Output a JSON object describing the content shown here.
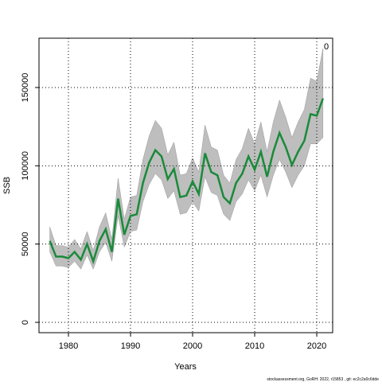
{
  "chart_data": {
    "type": "line",
    "xlabel": "Years",
    "ylabel": "SSB",
    "annotation": "0",
    "footer": "stockassessment.org, GoRH: 2022, r15853 , git: ec2c2a0c6dde",
    "x": [
      1977,
      1978,
      1979,
      1980,
      1981,
      1982,
      1983,
      1984,
      1985,
      1986,
      1987,
      1988,
      1989,
      1990,
      1991,
      1992,
      1993,
      1994,
      1995,
      1996,
      1997,
      1998,
      1999,
      2000,
      2001,
      2002,
      2003,
      2004,
      2005,
      2006,
      2007,
      2008,
      2009,
      2010,
      2011,
      2012,
      2013,
      2014,
      2015,
      2016,
      2017,
      2018,
      2019,
      2020,
      2021
    ],
    "values": [
      52000,
      42000,
      42000,
      41000,
      45000,
      40000,
      50000,
      39000,
      52000,
      59500,
      45000,
      79000,
      56000,
      68000,
      69000,
      89000,
      102000,
      110000,
      106000,
      91500,
      98000,
      80000,
      81000,
      90000,
      82000,
      108000,
      96000,
      94000,
      80000,
      76000,
      89000,
      95000,
      106000,
      97500,
      109000,
      93000,
      109000,
      121000,
      112000,
      100500,
      109000,
      116000,
      133000,
      132000,
      143000
    ],
    "upper": [
      61000,
      49000,
      49000,
      48000,
      53000,
      47000,
      58000,
      46000,
      61000,
      70000,
      53000,
      92000,
      66000,
      80000,
      81000,
      104000,
      119000,
      129000,
      124000,
      107000,
      115000,
      94000,
      95000,
      105000,
      96000,
      126000,
      112000,
      110000,
      94000,
      89000,
      104000,
      111000,
      124000,
      114000,
      128000,
      109000,
      128000,
      142000,
      131000,
      118000,
      128000,
      136000,
      156000,
      154000,
      175000
    ],
    "lower": [
      45000,
      36000,
      36000,
      35000,
      39000,
      34000,
      43000,
      34000,
      45000,
      51000,
      39000,
      68000,
      48000,
      58000,
      59000,
      77000,
      88000,
      95000,
      91000,
      79000,
      84000,
      69000,
      70000,
      77000,
      71000,
      93000,
      83000,
      81000,
      69000,
      65000,
      77000,
      82000,
      91000,
      84000,
      94000,
      80000,
      94000,
      104000,
      96000,
      86000,
      94000,
      100000,
      114000,
      114000,
      118000
    ],
    "color": "#1a8a3a",
    "band_color": "#bebebe",
    "xlim": [
      1975.26,
      2022.56
    ],
    "ylim": [
      -6600,
      181500
    ],
    "xticks": [
      1980,
      1990,
      2000,
      2010,
      2020
    ],
    "yticks": [
      0,
      50000,
      100000,
      150000
    ],
    "grid": true
  }
}
